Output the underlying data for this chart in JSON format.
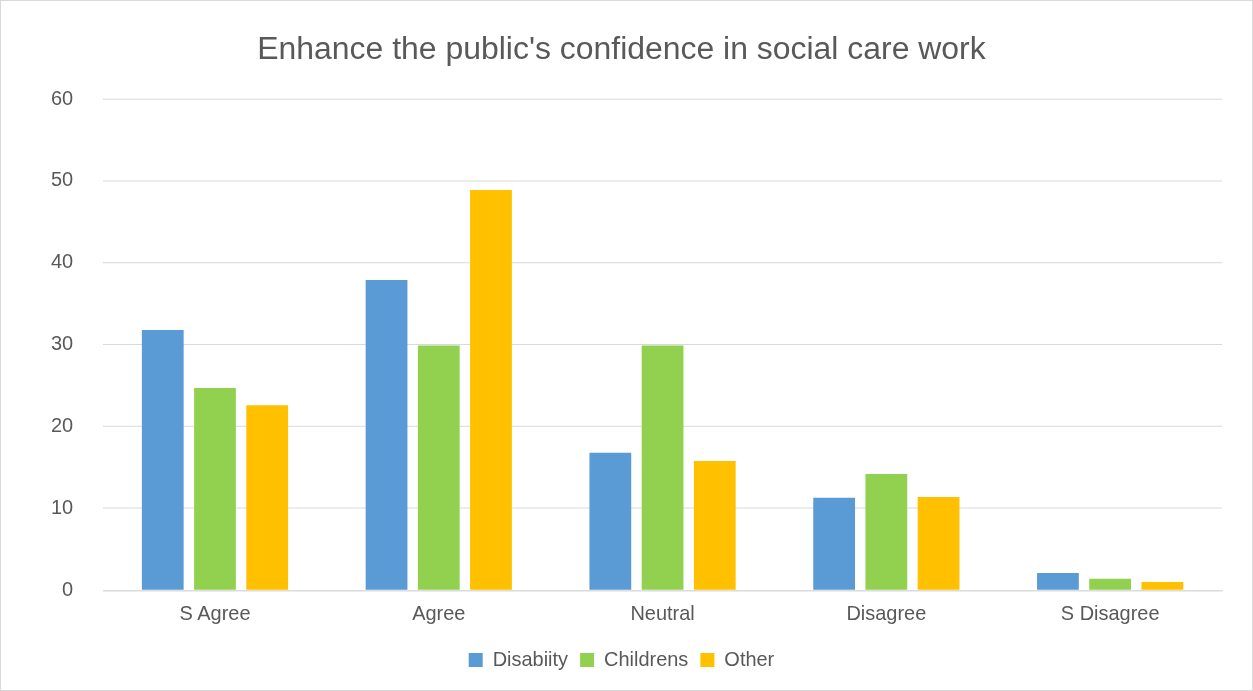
{
  "chart_data": {
    "type": "bar",
    "title": "Enhance the public's confidence in social care work",
    "categories": [
      "S Agree",
      "Agree",
      "Neutral",
      "Disagree",
      "S Disagree"
    ],
    "series": [
      {
        "name": "Disabiity",
        "color": "#5b9bd5",
        "values": [
          31.8,
          37.9,
          16.8,
          11.3,
          2.1
        ]
      },
      {
        "name": "Childrens",
        "color": "#92d050",
        "values": [
          24.7,
          29.9,
          29.9,
          14.2,
          1.4
        ]
      },
      {
        "name": "Other",
        "color": "#ffc000",
        "values": [
          22.6,
          48.9,
          15.8,
          11.4,
          1.0
        ]
      }
    ],
    "ylim": [
      0,
      60
    ],
    "yticks": [
      0,
      10,
      20,
      30,
      40,
      50,
      60
    ],
    "grid": "y",
    "legend": "bottom"
  }
}
